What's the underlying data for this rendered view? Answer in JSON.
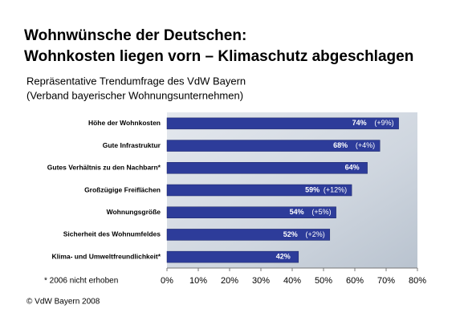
{
  "chart_data": {
    "type": "hbar",
    "title": [
      "Wohnwünsche der Deutschen:",
      "Wohnkosten liegen vorn – Klimaschutz abgeschlagen"
    ],
    "subtitle": [
      "Repräsentative Trendumfrage des VdW Bayern",
      "(Verband bayerischer Wohnungsunternehmen)"
    ],
    "categories": [
      "Höhe der Wohnkosten",
      "Gute Infrastruktur",
      "Gutes Verhältnis zu den Nachbarn*",
      "Großzügige Freiflächen",
      "Wohnungsgröße",
      "Sicherheit des Wohnumfeldes",
      "Klima- und Umweltfreundlichkeit*"
    ],
    "values": [
      74,
      68,
      64,
      59,
      54,
      52,
      42
    ],
    "value_labels": [
      "74%",
      "68%",
      "64%",
      "59%",
      "54%",
      "52%",
      "42%"
    ],
    "changes": [
      "(+9%)",
      "(+4%)",
      null,
      "(+12%)",
      "(+5%)",
      "(+2%)",
      null
    ],
    "color": "#2d3c9a",
    "xlim": [
      0,
      80
    ],
    "xticks": [
      {
        "value": 0,
        "label": "0%"
      },
      {
        "value": 10,
        "label": "10%"
      },
      {
        "value": 20,
        "label": "20%"
      },
      {
        "value": 30,
        "label": "30%"
      },
      {
        "value": 40,
        "label": "40%"
      },
      {
        "value": 50,
        "label": "50%"
      },
      {
        "value": 60,
        "label": "60%"
      },
      {
        "value": 70,
        "label": "70%"
      },
      {
        "value": 80,
        "label": "80%"
      }
    ],
    "footnote": "* 2006 nicht erhoben",
    "copyright": "© VdW Bayern 2008"
  }
}
